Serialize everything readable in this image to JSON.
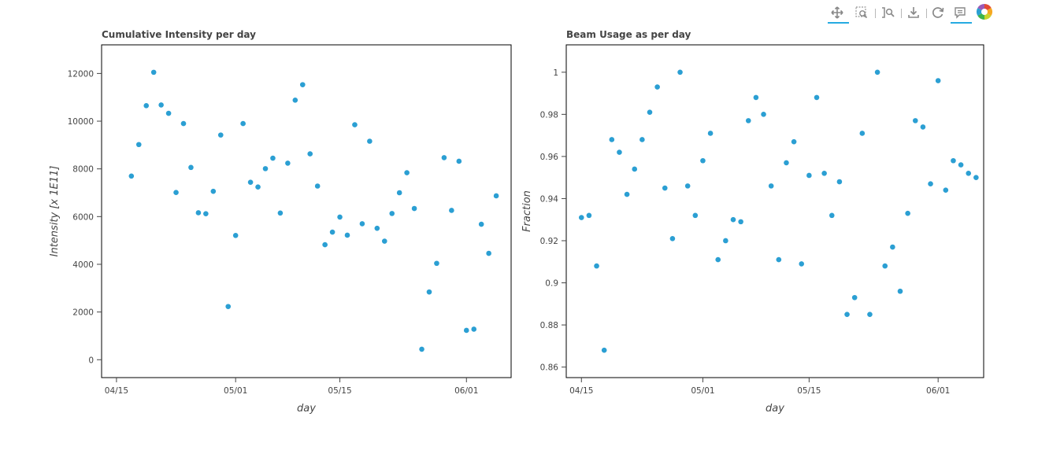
{
  "toolbar": {
    "tools": [
      {
        "name": "pan-tool",
        "icon": "pan-icon",
        "active": true
      },
      {
        "name": "box-zoom-tool",
        "icon": "box-zoom-icon",
        "active": false
      },
      {
        "name": "wheel-zoom-tool",
        "icon": "wheel-zoom-icon",
        "active": false
      },
      {
        "name": "save-tool",
        "icon": "save-icon",
        "active": false
      },
      {
        "name": "reset-tool",
        "icon": "reset-icon",
        "active": false
      },
      {
        "name": "hover-tool",
        "icon": "hover-icon",
        "active": true
      }
    ],
    "logo": "bokeh-logo-icon"
  },
  "colors": {
    "marker": "#2b9fd3",
    "frame": "#000000",
    "tick_text": "#444444",
    "title": "#444444"
  },
  "chart_data": [
    {
      "type": "scatter",
      "title": "Cumulative Intensity per day",
      "xlabel": "day",
      "ylabel": "Intensity [x 1E11]",
      "xlim": [
        "2023-04-13",
        "2023-06-07"
      ],
      "ylim": [
        -750,
        13200
      ],
      "x_ticks": [
        "04/15",
        "05/01",
        "05/15",
        "06/01"
      ],
      "y_ticks": [
        "0",
        "2000",
        "4000",
        "6000",
        "8000",
        "10000",
        "12000"
      ],
      "grid": false,
      "x": [
        "2023-04-17",
        "2023-04-18",
        "2023-04-19",
        "2023-04-20",
        "2023-04-21",
        "2023-04-22",
        "2023-04-23",
        "2023-04-24",
        "2023-04-25",
        "2023-04-26",
        "2023-04-27",
        "2023-04-28",
        "2023-04-29",
        "2023-04-30",
        "2023-05-01",
        "2023-05-02",
        "2023-05-03",
        "2023-05-04",
        "2023-05-05",
        "2023-05-06",
        "2023-05-07",
        "2023-05-08",
        "2023-05-09",
        "2023-05-10",
        "2023-05-11",
        "2023-05-12",
        "2023-05-13",
        "2023-05-14",
        "2023-05-15",
        "2023-05-16",
        "2023-05-17",
        "2023-05-18",
        "2023-05-19",
        "2023-05-20",
        "2023-05-21",
        "2023-05-22",
        "2023-05-23",
        "2023-05-24",
        "2023-05-25",
        "2023-05-26",
        "2023-05-27",
        "2023-05-28",
        "2023-05-29",
        "2023-05-30",
        "2023-05-31",
        "2023-06-01",
        "2023-06-02",
        "2023-06-03",
        "2023-06-04",
        "2023-06-05"
      ],
      "y": [
        7700,
        9020,
        10650,
        12050,
        10680,
        10330,
        7010,
        9900,
        8060,
        6160,
        6120,
        7060,
        9420,
        2230,
        5210,
        9900,
        7440,
        7240,
        8010,
        8450,
        6150,
        8240,
        10880,
        11530,
        8630,
        7280,
        4820,
        5350,
        5980,
        5220,
        9850,
        5700,
        9160,
        5510,
        4970,
        6130,
        7000,
        7840,
        6340,
        440,
        2840,
        4040,
        8470,
        6260,
        8320,
        1230,
        1280,
        5680,
        4460,
        6870
      ]
    },
    {
      "type": "scatter",
      "title": "Beam Usage as per day",
      "xlabel": "day",
      "ylabel": "Fraction",
      "xlim": [
        "2023-04-13",
        "2023-06-07"
      ],
      "ylim": [
        0.855,
        1.013
      ],
      "x_ticks": [
        "04/15",
        "05/01",
        "05/15",
        "06/01"
      ],
      "y_ticks": [
        "0.86",
        "0.88",
        "0.9",
        "0.92",
        "0.94",
        "0.96",
        "0.98",
        "1"
      ],
      "grid": false,
      "x": [
        "2023-04-15",
        "2023-04-16",
        "2023-04-17",
        "2023-04-18",
        "2023-04-19",
        "2023-04-20",
        "2023-04-21",
        "2023-04-22",
        "2023-04-23",
        "2023-04-24",
        "2023-04-25",
        "2023-04-26",
        "2023-04-27",
        "2023-04-28",
        "2023-04-29",
        "2023-04-30",
        "2023-05-01",
        "2023-05-02",
        "2023-05-03",
        "2023-05-04",
        "2023-05-05",
        "2023-05-06",
        "2023-05-07",
        "2023-05-08",
        "2023-05-09",
        "2023-05-10",
        "2023-05-11",
        "2023-05-12",
        "2023-05-13",
        "2023-05-14",
        "2023-05-15",
        "2023-05-16",
        "2023-05-17",
        "2023-05-18",
        "2023-05-19",
        "2023-05-20",
        "2023-05-21",
        "2023-05-22",
        "2023-05-23",
        "2023-05-24",
        "2023-05-25",
        "2023-05-26",
        "2023-05-27",
        "2023-05-28",
        "2023-05-29",
        "2023-05-30",
        "2023-05-31",
        "2023-06-01",
        "2023-06-02",
        "2023-06-03",
        "2023-06-04",
        "2023-06-05",
        "2023-06-06"
      ],
      "y": [
        0.931,
        0.932,
        0.908,
        0.868,
        0.968,
        0.962,
        0.942,
        0.954,
        0.968,
        0.981,
        0.993,
        0.945,
        0.921,
        1.0,
        0.946,
        0.932,
        0.958,
        0.971,
        0.911,
        0.92,
        0.93,
        0.929,
        0.977,
        0.988,
        0.98,
        0.946,
        0.911,
        0.957,
        0.967,
        0.909,
        0.951,
        0.988,
        0.952,
        0.932,
        0.948,
        0.885,
        0.893,
        0.971,
        0.885,
        1.0,
        0.908,
        0.917,
        0.896,
        0.933,
        0.977,
        0.974,
        0.947,
        0.996,
        0.944,
        0.958,
        0.956,
        0.952,
        0.95
      ]
    }
  ]
}
